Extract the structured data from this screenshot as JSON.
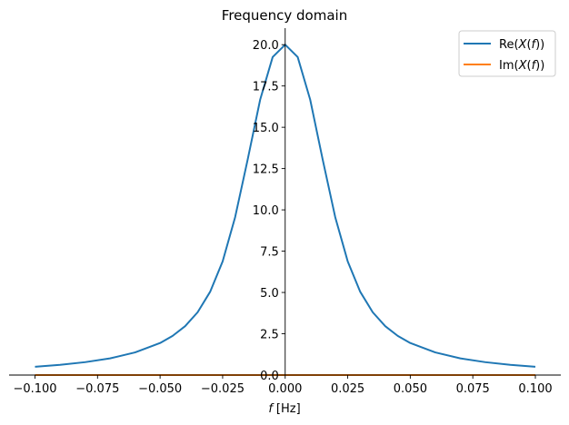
{
  "chart_data": {
    "type": "line",
    "title": "Frequency domain",
    "xlabel_italic": "f",
    "xlabel_unit": "[Hz]",
    "ylabel": "",
    "xlim": [
      -0.1,
      0.1
    ],
    "ylim": [
      0,
      21
    ],
    "x_ticks": [
      -0.1,
      -0.075,
      -0.05,
      -0.025,
      0.0,
      0.025,
      0.05,
      0.075,
      0.1
    ],
    "x_tick_labels": [
      "−0.100",
      "−0.075",
      "−0.050",
      "−0.025",
      "0.000",
      "0.025",
      "0.050",
      "0.075",
      "0.100"
    ],
    "y_ticks": [
      0,
      2.5,
      5,
      7.5,
      10,
      12.5,
      15,
      17.5,
      20
    ],
    "y_tick_labels": [
      "0.0",
      "2.5",
      "5.0",
      "7.5",
      "10.0",
      "12.5",
      "15.0",
      "17.5",
      "20.0"
    ],
    "grid": false,
    "legend_position": "top-right",
    "series": [
      {
        "name": "Re(X(f))",
        "name_prefix": "Re(",
        "name_var": "X",
        "name_open": "(",
        "name_arg": "f",
        "name_suffix": "))",
        "color": "#1f77b4",
        "x": [
          -0.1,
          -0.09,
          -0.08,
          -0.07,
          -0.06,
          -0.05,
          -0.045,
          -0.04,
          -0.035,
          -0.03,
          -0.025,
          -0.02,
          -0.015,
          -0.01,
          -0.005,
          0.0,
          0.005,
          0.01,
          0.015,
          0.02,
          0.025,
          0.03,
          0.035,
          0.04,
          0.045,
          0.05,
          0.06,
          0.07,
          0.08,
          0.09,
          0.1
        ],
        "y": [
          0.5,
          0.62,
          0.78,
          1.01,
          1.37,
          1.94,
          2.37,
          2.96,
          3.8,
          5.04,
          6.88,
          9.56,
          13.04,
          16.67,
          19.25,
          20.0,
          19.25,
          16.67,
          13.04,
          9.56,
          6.88,
          5.04,
          3.8,
          2.96,
          2.37,
          1.94,
          1.37,
          1.01,
          0.78,
          0.62,
          0.5
        ]
      },
      {
        "name": "Im(X(f))",
        "name_prefix": "Im(",
        "name_var": "X",
        "name_open": "(",
        "name_arg": "f",
        "name_suffix": "))",
        "color": "#ff7f0e",
        "x": [
          -0.1,
          0.1
        ],
        "y": [
          0.0,
          0.0
        ]
      }
    ]
  }
}
